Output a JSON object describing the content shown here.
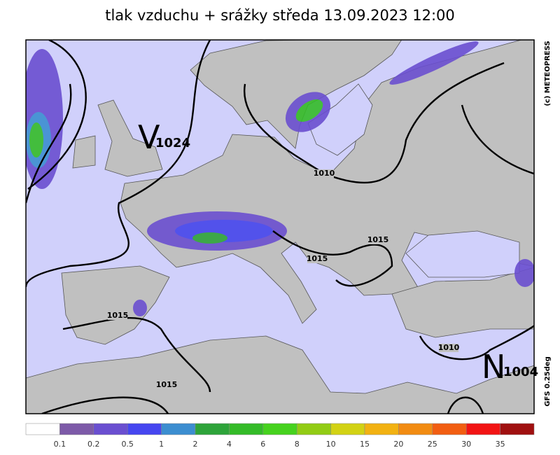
{
  "title": "tlak vzduchu + srážky  středa 13.09.2023 12:00",
  "copyright": "(c) METEOPRESS",
  "model": "GFS 0.25deg",
  "pressure_centers": [
    {
      "letter": "V",
      "value": "1024"
    },
    {
      "letter": "N",
      "value": "1004"
    }
  ],
  "isobar_labels": [
    "1010",
    "1015",
    "1015",
    "1015",
    "1010",
    "1015"
  ],
  "legend": {
    "colors": [
      "#ffffff",
      "#7d5aa8",
      "#6a4fd0",
      "#4646f0",
      "#3c8ed0",
      "#2ea43a",
      "#34bb28",
      "#46d21e",
      "#92cc14",
      "#d2d214",
      "#f2b212",
      "#f28c12",
      "#f25e12",
      "#f21414",
      "#a01010"
    ],
    "ticks": [
      0.1,
      0.2,
      0.5,
      1,
      2,
      4,
      6,
      8,
      10,
      15,
      20,
      25,
      30,
      35
    ]
  }
}
